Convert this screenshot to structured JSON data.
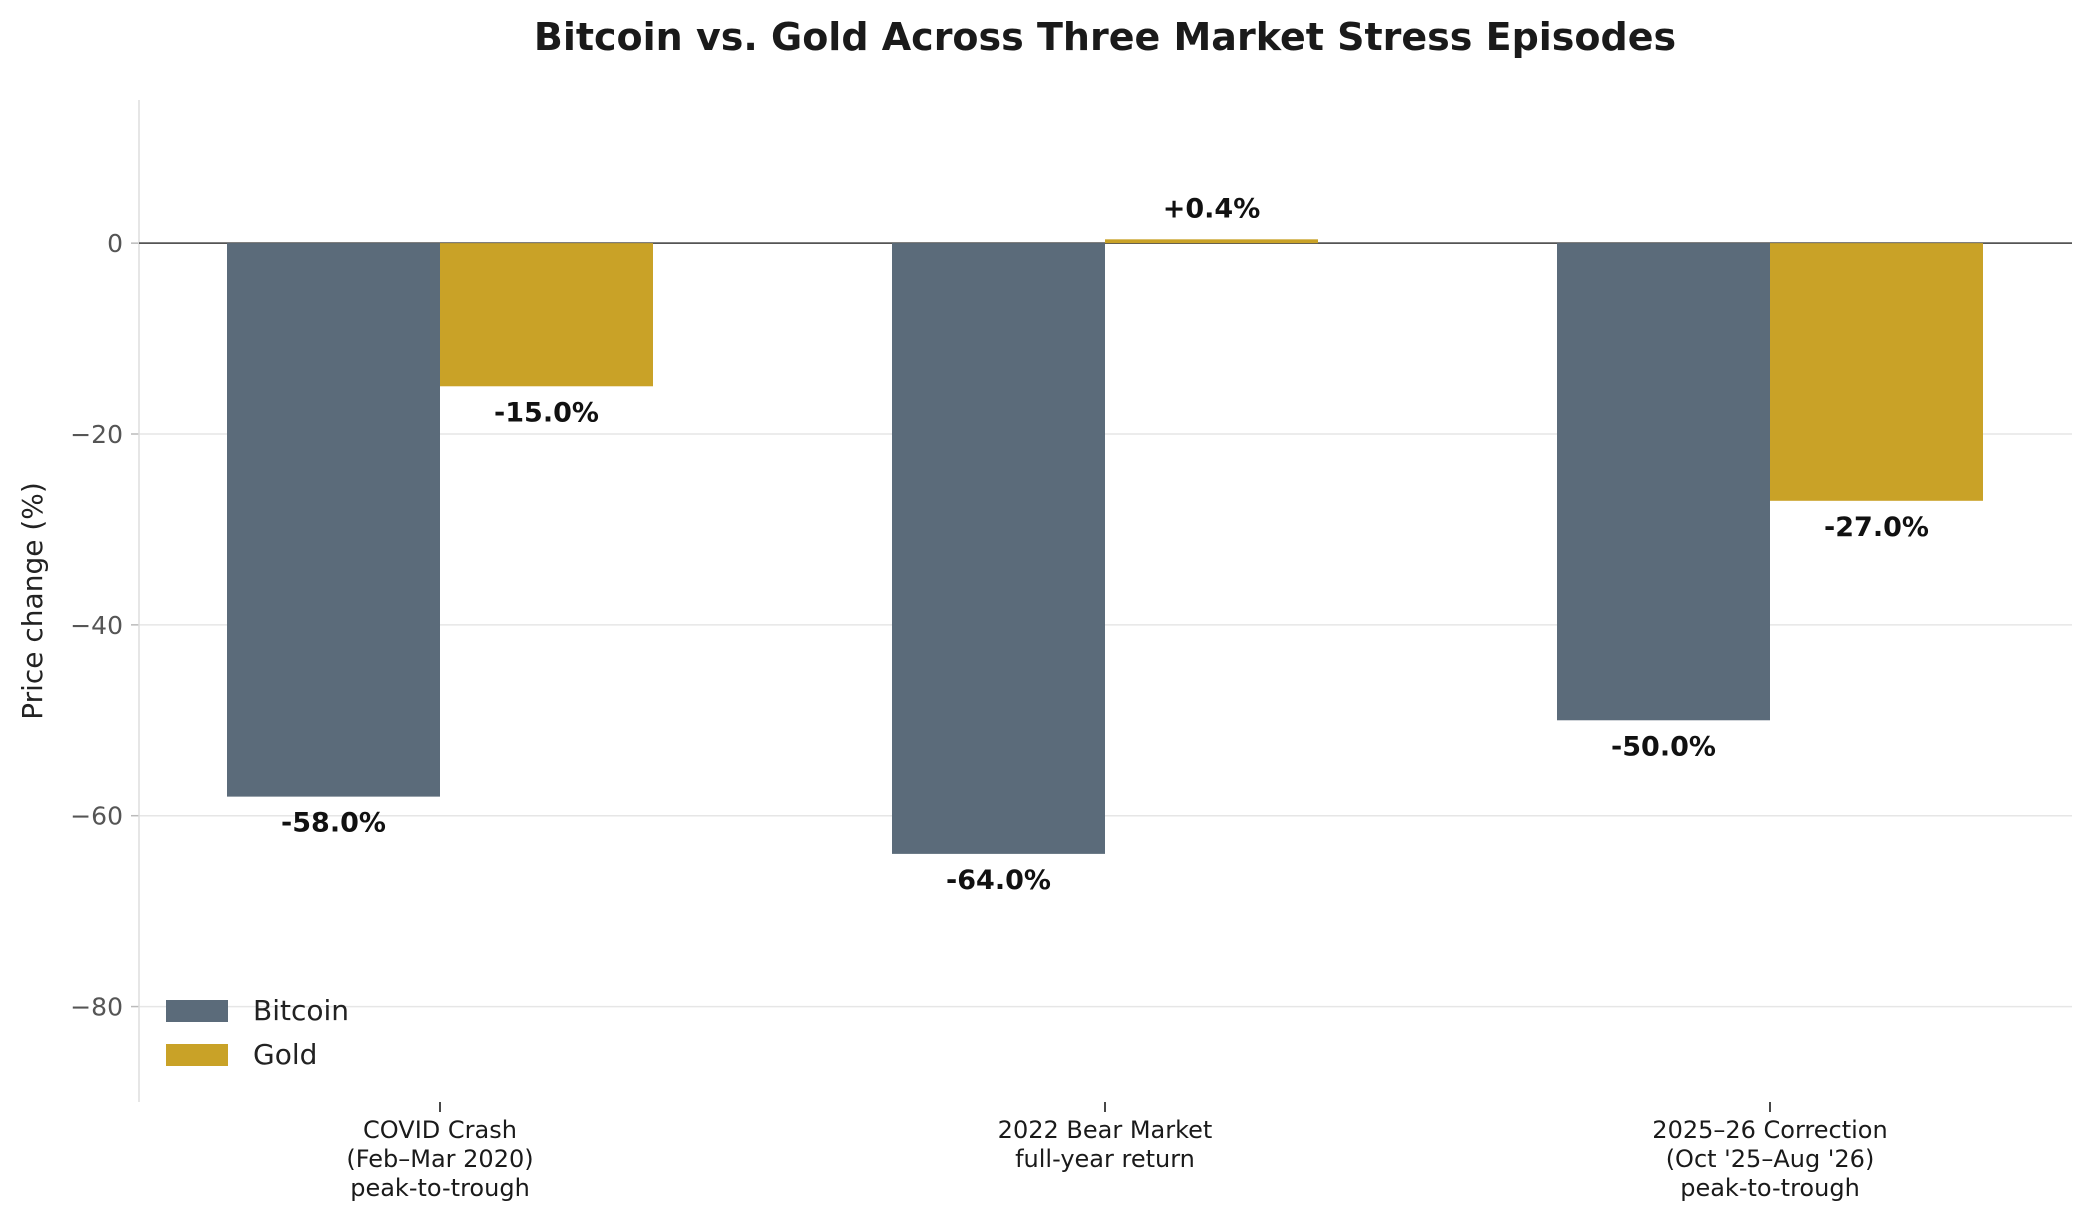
{
  "chart_data": {
    "type": "bar",
    "title": "Bitcoin vs. Gold Across Three Market Stress Episodes",
    "xlabel": "",
    "ylabel": "Price change (%)",
    "ylim": [
      -90,
      15
    ],
    "yticks": [
      0,
      -20,
      -40,
      -60,
      -80
    ],
    "ytick_labels": [
      "0",
      "−20",
      "−40",
      "−60",
      "−80"
    ],
    "grid": true,
    "legend_position": "lower-left",
    "categories": [
      [
        "COVID Crash",
        "(Feb–Mar 2020)",
        "peak-to-trough"
      ],
      [
        "2022 Bear Market",
        "full-year return"
      ],
      [
        "2025–26 Correction",
        "(Oct '25–Aug '26)",
        "peak-to-trough"
      ]
    ],
    "series": [
      {
        "name": "Bitcoin",
        "color": "#5b6b7a",
        "values": [
          -58.0,
          -64.0,
          -50.0
        ],
        "labels": [
          "-58.0%",
          "-64.0%",
          "-50.0%"
        ]
      },
      {
        "name": "Gold",
        "color": "#c9a227",
        "values": [
          -15.0,
          0.4,
          -27.0
        ],
        "labels": [
          "-15.0%",
          "+0.4%",
          "-27.0%"
        ]
      }
    ]
  }
}
